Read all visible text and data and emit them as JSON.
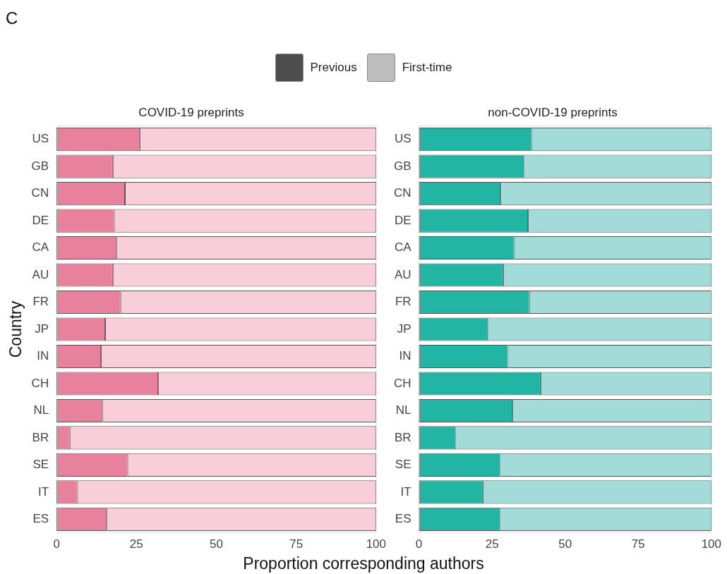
{
  "chart_data": [
    {
      "type": "bar",
      "orientation": "horizontal",
      "stacked": true,
      "title": "COVID-19 preprints",
      "xlabel": "Proportion corresponding authors",
      "ylabel": "Country",
      "annotations": [
        "C"
      ],
      "legend": "top",
      "grid": false,
      "categories": [
        "US",
        "GB",
        "CN",
        "DE",
        "CA",
        "AU",
        "FR",
        "JP",
        "IN",
        "CH",
        "NL",
        "BR",
        "SE",
        "IT",
        "ES"
      ],
      "xlim": [
        0,
        100
      ],
      "xticks": [
        0,
        25,
        50,
        75,
        100
      ],
      "series": [
        {
          "name": "Previous",
          "color": "#e8819b",
          "values": [
            26,
            17.6,
            21.4,
            18,
            18.8,
            17.6,
            20,
            15.2,
            13.9,
            31.8,
            14.4,
            4.1,
            22.2,
            6.5,
            15.7
          ]
        },
        {
          "name": "First-time",
          "color": "#f7ceda",
          "values": [
            74,
            82.4,
            78.6,
            82,
            81.2,
            82.4,
            80,
            84.8,
            86.1,
            68.2,
            85.6,
            95.9,
            77.8,
            93.5,
            84.3
          ]
        }
      ]
    },
    {
      "type": "bar",
      "orientation": "horizontal",
      "stacked": true,
      "title": "non-COVID-19 preprints",
      "grid": false,
      "categories": [
        "US",
        "GB",
        "CN",
        "DE",
        "CA",
        "AU",
        "FR",
        "JP",
        "IN",
        "CH",
        "NL",
        "BR",
        "SE",
        "IT",
        "ES"
      ],
      "xlim": [
        0,
        100
      ],
      "xticks": [
        0,
        25,
        50,
        75,
        100
      ],
      "series": [
        {
          "color": "#22b5a4",
          "values": [
            38.6,
            35.9,
            27.9,
            37.3,
            32.6,
            28.8,
            37.7,
            23.6,
            30.4,
            41.6,
            32,
            12.5,
            27.7,
            21.8,
            27.7
          ]
        },
        {
          "color": "#a2dbd7",
          "values": [
            61.4,
            64.1,
            72.1,
            62.7,
            67.4,
            71.2,
            62.3,
            76.4,
            69.6,
            58.4,
            68,
            87.5,
            72.3,
            78.2,
            72.3
          ]
        }
      ]
    }
  ]
}
